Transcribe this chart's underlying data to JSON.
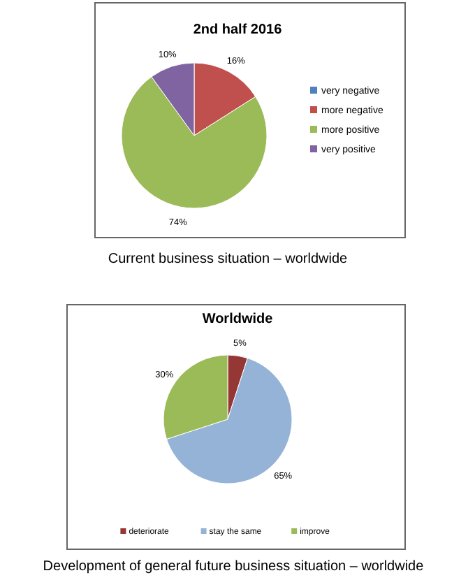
{
  "chart_data": [
    {
      "type": "pie",
      "title": "2nd half 2016",
      "categories": [
        "very negative",
        "more negative",
        "more positive",
        "very positive"
      ],
      "values": [
        0,
        16,
        74,
        10
      ],
      "value_labels": [
        null,
        "16%",
        "74%",
        "10%"
      ],
      "colors": [
        "#4f81bd",
        "#c0504d",
        "#9bbb59",
        "#8064a2"
      ],
      "legend": "right",
      "annotations": [
        "Current business situation – worldwide"
      ]
    },
    {
      "type": "pie",
      "title": "Worldwide",
      "categories": [
        "deteriorate",
        "stay the same",
        "improve"
      ],
      "values": [
        5,
        65,
        30
      ],
      "value_labels": [
        "5%",
        "65%",
        "30%"
      ],
      "colors": [
        "#953735",
        "#95b3d7",
        "#9bbb59"
      ],
      "legend": "bottom",
      "annotations": [
        "Development of general future business situation – worldwide"
      ]
    }
  ]
}
